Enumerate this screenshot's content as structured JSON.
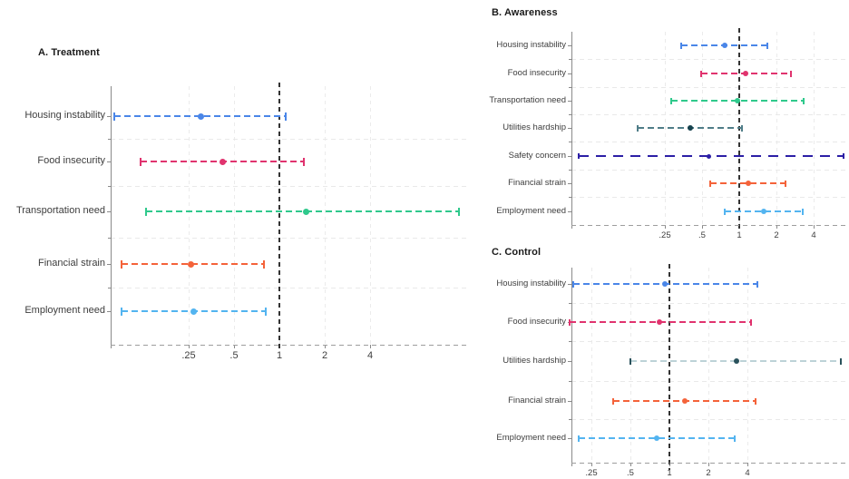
{
  "chart_data": [
    {
      "type": "scatter",
      "subtype": "forest-plot",
      "title": "A. Treatment",
      "x_scale": "log",
      "xlim": [
        0.08,
        17.6
      ],
      "x_ticks": [
        0.25,
        0.5,
        1,
        2,
        4
      ],
      "x_tick_labels": [
        ".25",
        ".5",
        "1",
        "2",
        "4"
      ],
      "ref_line": 1,
      "grid": "light-dashed",
      "legend": "none",
      "rows": [
        {
          "category": "Housing instability",
          "est": 0.3,
          "lo": 0.08,
          "hi": 1.1,
          "color": "#4a86e8"
        },
        {
          "category": "Food insecurity",
          "est": 0.42,
          "lo": 0.12,
          "hi": 1.45,
          "color": "#e0336e"
        },
        {
          "category": "Transportation need",
          "est": 1.5,
          "lo": 0.13,
          "hi": 15.5,
          "color": "#2fc98c"
        },
        {
          "category": "Financial strain",
          "est": 0.26,
          "lo": 0.09,
          "hi": 0.79,
          "color": "#f4633a"
        },
        {
          "category": "Employment need",
          "est": 0.27,
          "lo": 0.09,
          "hi": 0.81,
          "color": "#53b4f0"
        }
      ]
    },
    {
      "type": "scatter",
      "subtype": "forest-plot",
      "title": "B. Awareness",
      "x_scale": "log",
      "xlim": [
        0.04,
        7.5
      ],
      "x_ticks": [
        0.25,
        0.5,
        1,
        2,
        4
      ],
      "x_tick_labels": [
        ".25",
        ".5",
        "1",
        "2",
        "4"
      ],
      "ref_line": 1,
      "grid": "light-dashed",
      "legend": "none",
      "rows": [
        {
          "category": "Housing instability",
          "est": 0.76,
          "lo": 0.34,
          "hi": 1.7,
          "color": "#4a86e8"
        },
        {
          "category": "Food insecurity",
          "est": 1.12,
          "lo": 0.49,
          "hi": 2.6,
          "color": "#e0336e"
        },
        {
          "category": "Transportation need",
          "est": 0.97,
          "lo": 0.28,
          "hi": 3.3,
          "color": "#2fc98c"
        },
        {
          "category": "Utilities hardship",
          "est": 0.4,
          "lo": 0.15,
          "hi": 1.05,
          "color": "#4f7d88",
          "marker_color": "#16424d"
        },
        {
          "category": "Safety concern",
          "est": 0.57,
          "lo": 0.05,
          "hi": 7.0,
          "color": "#2c1fa6",
          "dash": "long",
          "thin": true
        },
        {
          "category": "Financial strain",
          "est": 1.18,
          "lo": 0.58,
          "hi": 2.36,
          "color": "#f4633a"
        },
        {
          "category": "Employment need",
          "est": 1.58,
          "lo": 0.76,
          "hi": 3.27,
          "color": "#53b4f0"
        }
      ]
    },
    {
      "type": "scatter",
      "subtype": "forest-plot",
      "title": "C. Control",
      "x_scale": "log",
      "xlim": [
        0.17,
        24.0
      ],
      "x_ticks": [
        0.25,
        0.5,
        1,
        2,
        4
      ],
      "x_tick_labels": [
        ".25",
        ".5",
        "1",
        "2",
        "4"
      ],
      "ref_line": 1,
      "grid": "light-dashed",
      "legend": "none",
      "rows": [
        {
          "category": "Housing instability",
          "est": 0.92,
          "lo": 0.18,
          "hi": 4.8,
          "color": "#4a86e8"
        },
        {
          "category": "Food insecurity",
          "est": 0.84,
          "lo": 0.17,
          "hi": 4.3,
          "color": "#e0336e"
        },
        {
          "category": "Utilities hardship",
          "est": 3.3,
          "lo": 0.5,
          "hi": 21.0,
          "color": "#bdd2d7",
          "marker_color": "#2a525c",
          "cap_color": "#2a525c"
        },
        {
          "category": "Financial strain",
          "est": 1.32,
          "lo": 0.37,
          "hi": 4.6,
          "color": "#f4633a"
        },
        {
          "category": "Employment need",
          "est": 0.8,
          "lo": 0.2,
          "hi": 3.2,
          "color": "#53b4f0"
        }
      ]
    }
  ],
  "colors": {
    "background": "#ffffff",
    "axis": "#8a8a8a",
    "reference_line": "#333333",
    "gridline": "#ebebeb",
    "text": "#3d3d3d"
  }
}
